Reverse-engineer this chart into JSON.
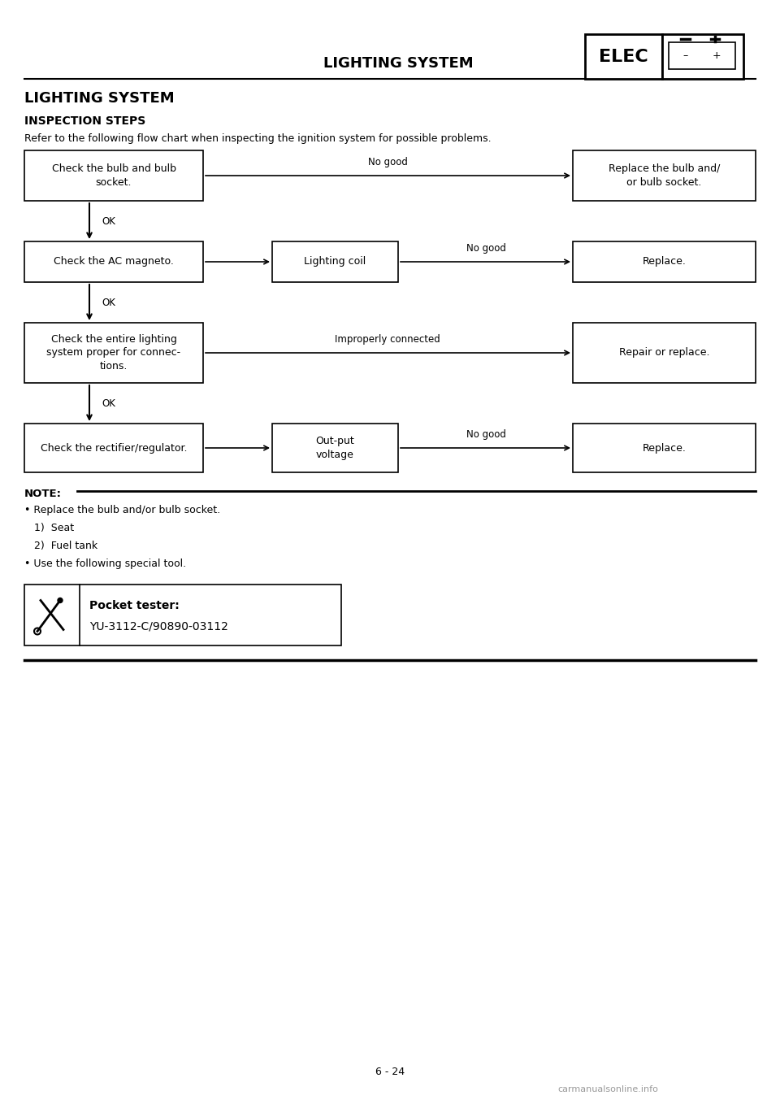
{
  "title_header": "LIGHTING SYSTEM",
  "elec_label": "ELEC",
  "section_title": "LIGHTING SYSTEM",
  "section_subtitle": "INSPECTION STEPS",
  "intro_text": "Refer to the following flow chart when inspecting the ignition system for possible problems.",
  "page_number": "6 - 24",
  "watermark": "carmanualsonline.info",
  "note_title": "NOTE:",
  "note_lines": [
    "• Replace the bulb and/or bulb socket.",
    "   1)  Seat",
    "   2)  Fuel tank",
    "• Use the following special tool."
  ],
  "tool_bold": "Pocket tester:",
  "tool_normal": "YU-3112-C/90890-03112"
}
